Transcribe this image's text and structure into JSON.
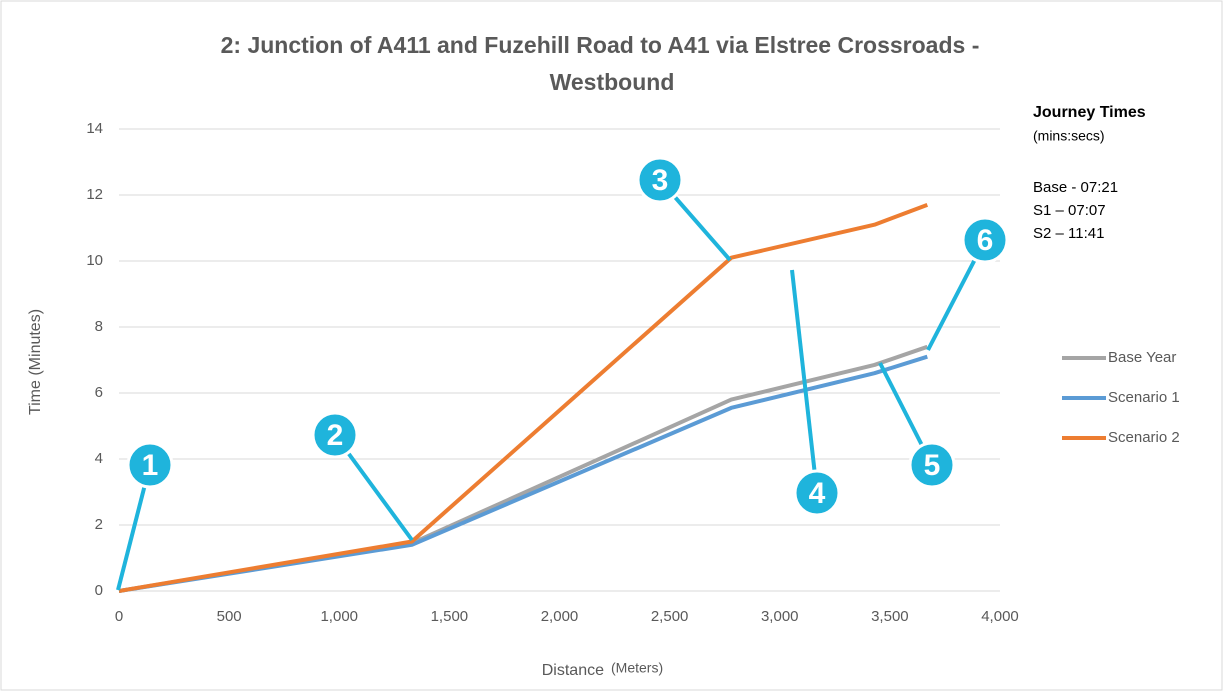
{
  "chart_data": {
    "type": "line",
    "title": [
      "2: Junction of A411 and Fuzehill Road to A41 via Elstree Crossroads -",
      "Westbound"
    ],
    "xlabel": "Distance",
    "xlabel_unit": "(Meters)",
    "ylabel": "Time (Minutes)",
    "xlim": [
      0,
      4000
    ],
    "xticks": [
      0,
      500,
      {
        "value": 1000,
        "label": "1,000"
      },
      {
        "value": 1500,
        "label": "1,500"
      },
      {
        "value": 2000,
        "label": "2,000"
      },
      {
        "value": 2500,
        "label": "2,500"
      },
      {
        "value": 3000,
        "label": "3,000"
      },
      {
        "value": 3500,
        "label": "3,500"
      },
      {
        "value": 4000,
        "label": "4,000"
      }
    ],
    "ylim": [
      0,
      14
    ],
    "yticks": [
      0,
      2,
      4,
      6,
      8,
      10,
      12,
      14
    ],
    "grid": true,
    "legend": "right",
    "series": [
      {
        "name": "Base Year",
        "color": "#a5a5a5",
        "x": [
          0,
          1330,
          2780,
          3430,
          3670
        ],
        "values": [
          0,
          1.45,
          5.8,
          6.85,
          7.4
        ]
      },
      {
        "name": "Scenario 1",
        "color": "#5b9bd5",
        "x": [
          0,
          1330,
          2780,
          3430,
          3670
        ],
        "values": [
          0,
          1.4,
          5.55,
          6.6,
          7.1
        ]
      },
      {
        "name": "Scenario 2",
        "color": "#ed7d31",
        "x": [
          0,
          1330,
          2780,
          3430,
          3670
        ],
        "values": [
          0,
          1.5,
          10.1,
          11.1,
          11.7
        ]
      }
    ],
    "annotations": [
      "1",
      "2",
      "3",
      "4",
      "5",
      "6"
    ],
    "side_note": {
      "title": "Journey Times",
      "subtitle": "(mins:secs)",
      "lines": [
        "Base - 07:21",
        "S1 – 07:07",
        "S2 – 11:41"
      ]
    }
  }
}
